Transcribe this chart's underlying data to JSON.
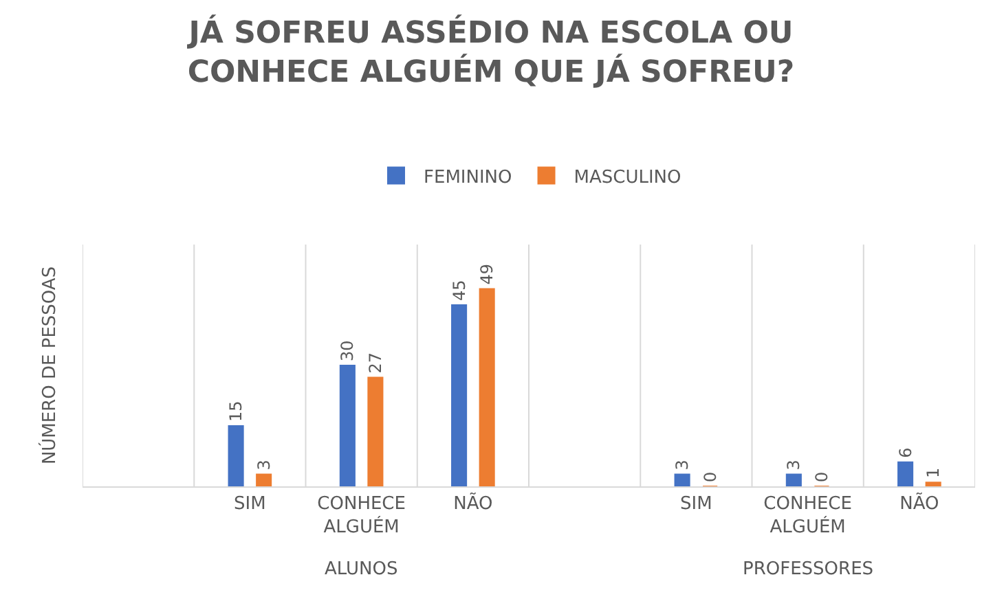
{
  "chart_data": {
    "type": "bar",
    "title": "JÁ SOFREU ASSÉDIO NA ESCOLA OU CONHECE ALGUÉM QUE JÁ SOFREU?",
    "ylabel": "NÚMERO DE PESSOAS",
    "categories": [
      null,
      "SIM",
      "CONHECE ALGUÉM",
      "NÃO",
      null,
      "SIM",
      "CONHECE ALGUÉM",
      "NÃO"
    ],
    "series": [
      {
        "name": "FEMININO",
        "color": "#4472c4",
        "values": [
          null,
          15,
          30,
          45,
          null,
          3,
          3,
          6
        ]
      },
      {
        "name": "MASCULINO",
        "color": "#ed7d31",
        "values": [
          null,
          3,
          27,
          49,
          null,
          0,
          0,
          1
        ]
      }
    ],
    "annotations": [
      "ALUNOS",
      "PROFESSORES"
    ],
    "ylim": [
      0,
      60
    ],
    "data_labels": true,
    "legend": "top",
    "grid": "x",
    "tick_labels": "x"
  }
}
